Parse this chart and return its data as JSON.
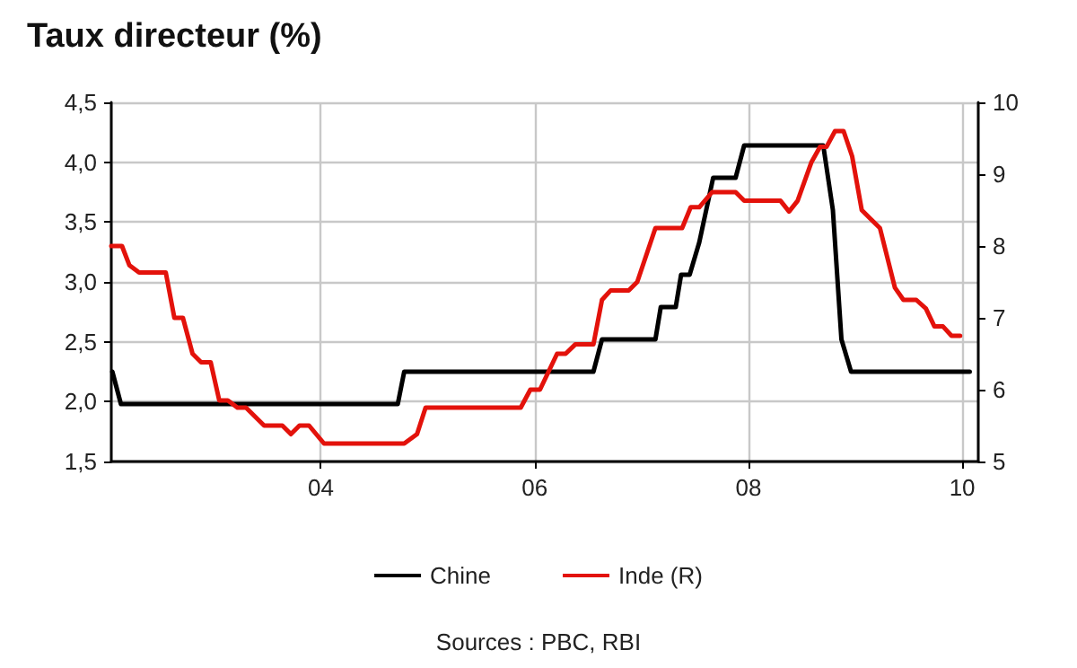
{
  "chart_data": {
    "type": "line",
    "title": "Taux directeur (%)",
    "annotations": [
      "Sources : PBC, RBI"
    ],
    "xlim": [
      2002.04,
      2010.15
    ],
    "xticks": [
      {
        "value": 2004,
        "label": "04"
      },
      {
        "value": 2006,
        "label": "06"
      },
      {
        "value": 2008,
        "label": "08"
      },
      {
        "value": 2010,
        "label": "10"
      }
    ],
    "ylim": [
      1.5,
      4.5
    ],
    "yticks": [
      {
        "value": 1.5,
        "label": "1,5"
      },
      {
        "value": 2,
        "label": "2,0"
      },
      {
        "value": 2.5,
        "label": "2,5"
      },
      {
        "value": 3,
        "label": "3,0"
      },
      {
        "value": 3.5,
        "label": "3,5"
      },
      {
        "value": 4,
        "label": "4,0"
      },
      {
        "value": 4.5,
        "label": "4,5"
      }
    ],
    "y2lim": [
      5,
      10
    ],
    "y2ticks": [
      5,
      6,
      7,
      8,
      9,
      10
    ],
    "grid": true,
    "legend": "bottom",
    "marker": "none",
    "line_style": "solid",
    "series": [
      {
        "name": "Chine",
        "color": "#000000",
        "x": [
          2002.05,
          2002.13,
          2004.72,
          2004.78,
          2006.55,
          2006.63,
          2007.13,
          2007.18,
          2007.32,
          2007.37,
          2007.45,
          2007.54,
          2007.67,
          2007.88,
          2007.96,
          2008.7,
          2008.79,
          2008.87,
          2008.96,
          2010.07
        ],
        "values": [
          2.25,
          1.98,
          1.98,
          2.25,
          2.25,
          2.52,
          2.52,
          2.79,
          2.79,
          3.06,
          3.06,
          3.33,
          3.87,
          3.87,
          4.14,
          4.14,
          3.6,
          2.52,
          2.25,
          2.25
        ]
      },
      {
        "name": "Inde (R)",
        "color": "#e3120b",
        "axis": "y2",
        "x": [
          2002.04,
          2002.14,
          2002.21,
          2002.3,
          2002.55,
          2002.63,
          2002.71,
          2002.8,
          2002.88,
          2002.97,
          2003.05,
          2003.13,
          2003.22,
          2003.3,
          2003.47,
          2003.64,
          2003.72,
          2003.8,
          2003.89,
          2004.03,
          2004.78,
          2004.9,
          2004.98,
          2005.87,
          2005.96,
          2006.05,
          2006.21,
          2006.29,
          2006.38,
          2006.55,
          2006.63,
          2006.71,
          2006.88,
          2006.96,
          2007.13,
          2007.38,
          2007.46,
          2007.54,
          2007.66,
          2007.88,
          2007.96,
          2008.3,
          2008.38,
          2008.46,
          2008.59,
          2008.67,
          2008.73,
          2008.81,
          2008.89,
          2008.97,
          2009.06,
          2009.14,
          2009.23,
          2009.37,
          2009.45,
          2009.57,
          2009.66,
          2009.74,
          2009.82,
          2009.9,
          2009.98
        ],
        "values": [
          8.0,
          8.0,
          7.73,
          7.63,
          7.63,
          7.0,
          7.0,
          6.5,
          6.38,
          6.38,
          5.85,
          5.85,
          5.75,
          5.75,
          5.5,
          5.5,
          5.38,
          5.5,
          5.5,
          5.25,
          5.25,
          5.38,
          5.75,
          5.75,
          6.0,
          6.0,
          6.5,
          6.5,
          6.63,
          6.63,
          7.25,
          7.38,
          7.38,
          7.5,
          8.25,
          8.25,
          8.54,
          8.54,
          8.75,
          8.75,
          8.63,
          8.63,
          8.48,
          8.63,
          9.17,
          9.38,
          9.38,
          9.6,
          9.6,
          9.25,
          8.5,
          8.38,
          8.25,
          7.42,
          7.25,
          7.25,
          7.13,
          6.88,
          6.88,
          6.75,
          6.75
        ]
      }
    ]
  }
}
